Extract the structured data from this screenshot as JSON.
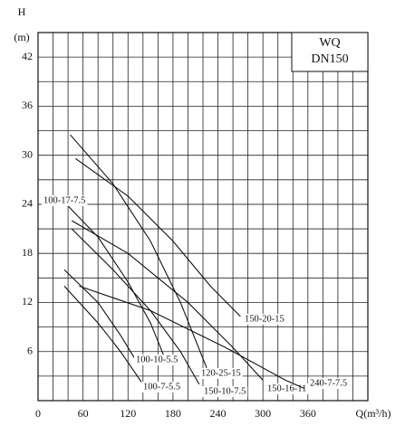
{
  "chart_data": {
    "type": "line",
    "x_label": "Q(m³/h)",
    "y_label": "H",
    "y_unit": "(m)",
    "box_title": "WQ",
    "box_subtitle": "DN150",
    "xlim": [
      0,
      440
    ],
    "xticks": [
      0,
      60,
      120,
      180,
      240,
      300,
      360
    ],
    "ylim": [
      0,
      45
    ],
    "yticks": [
      6,
      12,
      18,
      24,
      30,
      36,
      42
    ],
    "x_minor_grid": [
      20,
      40,
      80,
      100,
      140,
      160,
      200,
      220,
      260,
      280,
      320,
      340,
      380,
      400,
      420,
      440
    ],
    "y_minor_grid": [
      3,
      9,
      15,
      21,
      27,
      33,
      39,
      45
    ],
    "grid": true,
    "color": "#111111",
    "series": [
      {
        "name": "120-25-15",
        "x": [
          43,
          100,
          150,
          190,
          225
        ],
        "values": [
          32.5,
          26.5,
          19.5,
          12,
          4
        ]
      },
      {
        "name": "150-20-15",
        "x": [
          50,
          120,
          180,
          230,
          270
        ],
        "values": [
          29.6,
          25,
          19.5,
          14,
          10.3
        ]
      },
      {
        "name": "100-17-7.5",
        "x": [
          40,
          80,
          120,
          150,
          170
        ],
        "values": [
          23.8,
          20,
          14.5,
          9.5,
          5
        ]
      },
      {
        "name": "150-16-11",
        "x": [
          45,
          120,
          200,
          260,
          300
        ],
        "values": [
          22,
          18,
          12,
          6.5,
          2.5
        ]
      },
      {
        "name": "150-10-7.5",
        "x": [
          45,
          100,
          150,
          190,
          215
        ],
        "values": [
          21,
          16,
          11,
          6,
          2
        ]
      },
      {
        "name": "100-10-5.5",
        "x": [
          35,
          80,
          110,
          130
        ],
        "values": [
          16,
          12,
          8,
          5
        ]
      },
      {
        "name": "100-7-5.5",
        "x": [
          35,
          80,
          110,
          140
        ],
        "values": [
          14,
          9.5,
          6,
          2
        ]
      },
      {
        "name": "240-7-7.5",
        "x": [
          55,
          150,
          250,
          330,
          355
        ],
        "values": [
          14,
          11,
          6.5,
          2.5,
          1.5
        ]
      }
    ]
  }
}
